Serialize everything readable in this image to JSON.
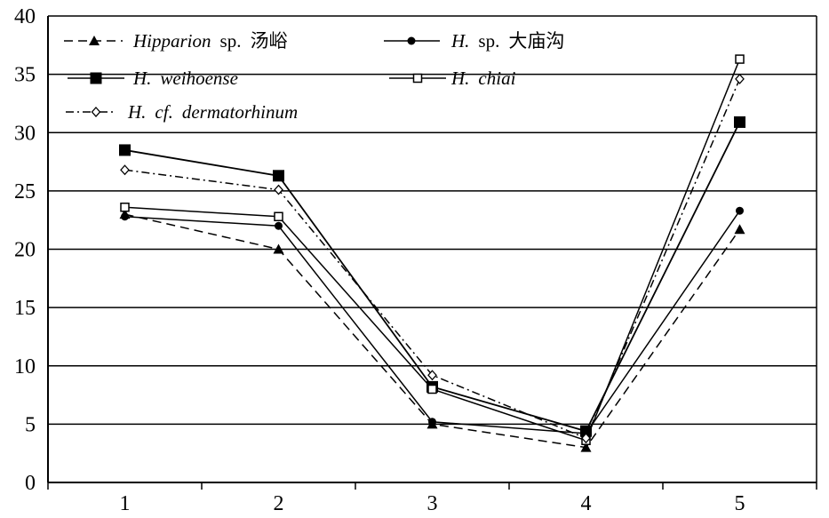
{
  "chart_data": {
    "type": "line",
    "title": "",
    "xlabel": "",
    "ylabel": "",
    "categories": [
      "1",
      "2",
      "3",
      "4",
      "5"
    ],
    "ylim": [
      0,
      40
    ],
    "yticks": [
      "0",
      "5",
      "10",
      "15",
      "20",
      "25",
      "30",
      "35",
      "40"
    ],
    "grid": "horizontal",
    "legend_position": "top-left",
    "series": [
      {
        "name": "Hipparion sp. 汤峪",
        "name_parts": [
          "Hipparion",
          "sp.",
          "汤峪"
        ],
        "values": [
          23.0,
          20.0,
          5.0,
          3.0,
          21.7
        ],
        "line": "dashed",
        "marker": "triangle-filled",
        "color": "#000000"
      },
      {
        "name": "H. sp. 大庙沟",
        "name_parts": [
          "H.",
          "sp.",
          "大庙沟"
        ],
        "values": [
          22.8,
          22.0,
          5.2,
          4.2,
          23.3
        ],
        "line": "solid",
        "marker": "circle-filled",
        "color": "#000000"
      },
      {
        "name": "H. weihoense",
        "name_parts": [
          "H.",
          "weihoense"
        ],
        "values": [
          28.5,
          26.3,
          8.2,
          4.4,
          30.9
        ],
        "line": "solid",
        "marker": "square-filled",
        "color": "#000000"
      },
      {
        "name": "H. chiai",
        "name_parts": [
          "H.",
          "chiai"
        ],
        "values": [
          23.6,
          22.8,
          8.0,
          3.6,
          36.3
        ],
        "line": "solid",
        "marker": "square-open",
        "color": "#000000"
      },
      {
        "name": "H. cf. dermatorhinum",
        "name_parts": [
          "H.",
          "cf.",
          "dermatorhinum"
        ],
        "values": [
          26.8,
          25.1,
          9.2,
          3.8,
          34.6
        ],
        "line": "dashdot",
        "marker": "diamond-open",
        "color": "#000000"
      }
    ]
  }
}
